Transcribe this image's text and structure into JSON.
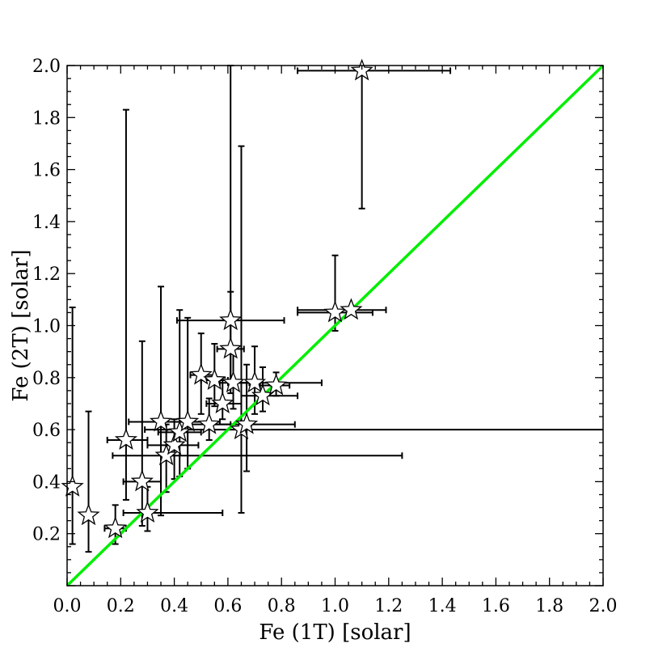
{
  "chart_data": {
    "type": "scatter",
    "title": "",
    "xlabel": "Fe (1T) [solar]",
    "ylabel": "Fe (2T) [solar]",
    "xlim": [
      0.0,
      2.0
    ],
    "ylim": [
      0.0,
      2.0
    ],
    "x_ticks": [
      "0.0",
      "0.2",
      "0.4",
      "0.6",
      "0.8",
      "1.0",
      "1.2",
      "1.4",
      "1.6",
      "1.8",
      "2.0"
    ],
    "y_ticks": [
      "0.2",
      "0.4",
      "0.6",
      "0.8",
      "1.0",
      "1.2",
      "1.4",
      "1.6",
      "1.8",
      "2.0"
    ],
    "grid": false,
    "legend": "none",
    "marker": "open-star",
    "reference_line": {
      "type": "y=x",
      "x": [
        0.0,
        2.0
      ],
      "y": [
        0.0,
        2.0
      ],
      "color": "#00ee00"
    },
    "points": [
      {
        "x": 0.02,
        "y": 0.38,
        "xerr": [
          0.02,
          0.0
        ],
        "yerr": [
          0.22,
          0.69
        ]
      },
      {
        "x": 0.08,
        "y": 0.27,
        "xerr": [
          0.01,
          0.01
        ],
        "yerr": [
          0.14,
          0.4
        ]
      },
      {
        "x": 0.18,
        "y": 0.22,
        "xerr": [
          0.04,
          0.04
        ],
        "yerr": [
          0.06,
          0.09
        ]
      },
      {
        "x": 0.22,
        "y": 0.56,
        "xerr": [
          0.07,
          0.08
        ],
        "yerr": [
          0.23,
          1.27
        ]
      },
      {
        "x": 0.28,
        "y": 0.4,
        "xerr": [
          0.07,
          0.07
        ],
        "yerr": [
          0.17,
          0.54
        ]
      },
      {
        "x": 0.3,
        "y": 0.28,
        "xerr": [
          0.09,
          0.28
        ],
        "yerr": [
          0.07,
          0.1
        ]
      },
      {
        "x": 0.35,
        "y": 0.63,
        "xerr": [
          0.12,
          0.1
        ],
        "yerr": [
          0.36,
          0.52
        ]
      },
      {
        "x": 0.37,
        "y": 0.5,
        "xerr": [
          0.2,
          0.88
        ],
        "yerr": [
          0.14,
          0.12
        ]
      },
      {
        "x": 0.4,
        "y": 0.54,
        "xerr": [
          0.1,
          0.09
        ],
        "yerr": [
          0.13,
          0.1
        ]
      },
      {
        "x": 0.42,
        "y": 0.59,
        "xerr": [
          0.08,
          0.08
        ],
        "yerr": [
          0.17,
          0.47
        ]
      },
      {
        "x": 0.45,
        "y": 0.63,
        "xerr": [
          0.1,
          0.12
        ],
        "yerr": [
          0.18,
          0.4
        ]
      },
      {
        "x": 0.5,
        "y": 0.81,
        "xerr": [
          0.04,
          0.05
        ],
        "yerr": [
          0.15,
          0.16
        ]
      },
      {
        "x": 0.53,
        "y": 0.62,
        "xerr": [
          0.08,
          0.08
        ],
        "yerr": [
          0.06,
          0.1
        ]
      },
      {
        "x": 0.55,
        "y": 0.79,
        "xerr": [
          0.05,
          0.05
        ],
        "yerr": [
          0.1,
          0.14
        ]
      },
      {
        "x": 0.58,
        "y": 0.7,
        "xerr": [
          0.06,
          0.07
        ],
        "yerr": [
          0.06,
          0.1
        ]
      },
      {
        "x": 0.61,
        "y": 1.02,
        "xerr": [
          0.2,
          0.2
        ],
        "yerr": [
          0.24,
          0.98
        ]
      },
      {
        "x": 0.61,
        "y": 0.91,
        "xerr": [
          0.05,
          0.05
        ],
        "yerr": [
          0.17,
          0.22
        ]
      },
      {
        "x": 0.62,
        "y": 0.78,
        "xerr": [
          0.05,
          0.06
        ],
        "yerr": [
          0.1,
          0.14
        ]
      },
      {
        "x": 0.65,
        "y": 0.6,
        "xerr": [
          0.36,
          1.35
        ],
        "yerr": [
          0.32,
          1.09
        ]
      },
      {
        "x": 0.67,
        "y": 0.62,
        "xerr": [
          0.14,
          0.18
        ],
        "yerr": [
          0.18,
          0.23
        ]
      },
      {
        "x": 0.7,
        "y": 0.78,
        "xerr": [
          0.1,
          0.25
        ],
        "yerr": [
          0.12,
          0.14
        ]
      },
      {
        "x": 0.73,
        "y": 0.73,
        "xerr": [
          0.08,
          0.13
        ],
        "yerr": [
          0.06,
          0.11
        ]
      },
      {
        "x": 0.78,
        "y": 0.77,
        "xerr": [
          0.06,
          0.05
        ],
        "yerr": [
          0.04,
          0.05
        ]
      },
      {
        "x": 1.0,
        "y": 1.05,
        "xerr": [
          0.14,
          0.14
        ],
        "yerr": [
          0.07,
          0.22
        ]
      },
      {
        "x": 1.06,
        "y": 1.06,
        "xerr": [
          0.2,
          0.13
        ],
        "yerr": [
          0.0,
          0.0
        ]
      },
      {
        "x": 1.1,
        "y": 1.98,
        "xerr": [
          0.24,
          0.33
        ],
        "yerr": [
          0.53,
          0.0
        ]
      }
    ]
  }
}
